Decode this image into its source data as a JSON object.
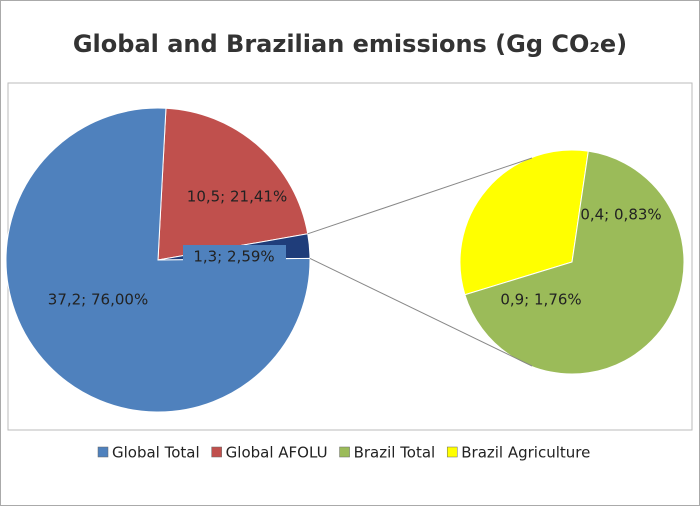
{
  "chart_data": {
    "type": "pie-of-pie",
    "title": "Global and Brazilian emissions (Gg CO₂e)",
    "series": [
      {
        "categories": [
          "Global Total",
          "Global AFOLU",
          "Brazil Total",
          "Brazil Agriculture"
        ],
        "values": [
          37.2,
          10.5,
          0.9,
          0.4
        ],
        "percents": [
          76.0,
          21.41,
          1.76,
          0.83
        ],
        "value_labels": [
          "37,2; 76,00%",
          "10,5; 21,41%",
          "0,9; 1,76%",
          "0,4; 0,83%"
        ],
        "colors": [
          "#4f81bd",
          "#c0504d",
          "#9bbb59",
          "#ffff00"
        ]
      }
    ],
    "other": {
      "value": 1.3,
      "percent": 2.59,
      "value_label": "1,3; 2,59%",
      "color": "#1f3d7a"
    },
    "legend": "bottom"
  }
}
